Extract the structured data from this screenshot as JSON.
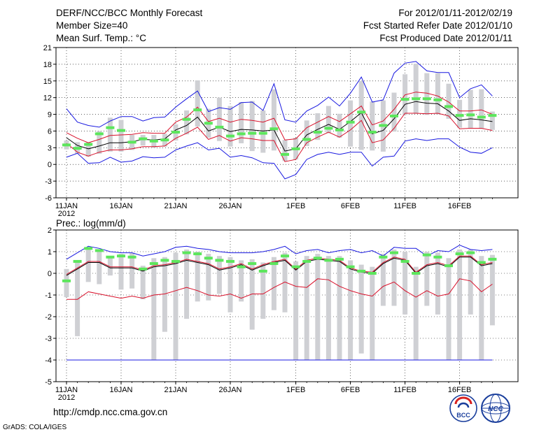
{
  "header": {
    "title": "DERF/NCC/BCC Monthly Forecast",
    "members": "Member Size=40",
    "variable1": "Mean Surf. Temp.: °C",
    "period": "For 2012/01/11-2012/02/19",
    "started": "Fcst Started Refer Date 2012/01/10",
    "produced": "Fcst Produced Date 2012/01/11"
  },
  "footer": {
    "url": "http://cmdp.ncc.cma.gov.cn",
    "credit": "GrADS: COLA/IGES",
    "logo_bcc": "BCC",
    "logo_ncc": "NCC"
  },
  "x_ticks": [
    {
      "day": 0,
      "label": "11JAN",
      "sub": "2012"
    },
    {
      "day": 5,
      "label": "16JAN"
    },
    {
      "day": 10,
      "label": "21JAN"
    },
    {
      "day": 15,
      "label": "26JAN"
    },
    {
      "day": 21,
      "label": "1FEB"
    },
    {
      "day": 26,
      "label": "6FEB"
    },
    {
      "day": 31,
      "label": "11FEB"
    },
    {
      "day": 36,
      "label": "16FEB"
    }
  ],
  "colors": {
    "box": "#cfd0d4",
    "median": "#5ce65c",
    "mean": "#000000",
    "std": "#d8102a",
    "range": "#1818e0"
  },
  "chart_data": [
    {
      "type": "box-ensemble",
      "ylabel": "Mean Surf. Temp.: °C",
      "ylim": [
        -6,
        21
      ],
      "yticks": [
        -6,
        -3,
        0,
        3,
        6,
        9,
        12,
        15,
        18,
        21
      ],
      "days": 40,
      "series": {
        "max": [
          10,
          7.6,
          7,
          6.7,
          7.8,
          8.6,
          8.6,
          7.8,
          8.4,
          8.5,
          10.3,
          11.8,
          13.2,
          9.5,
          10.2,
          9.9,
          11.1,
          11.2,
          9.7,
          14.5,
          8,
          7.6,
          9.6,
          10.6,
          12.1,
          10.5,
          12.8,
          15.7,
          11.2,
          11.6,
          16.4,
          18.2,
          18.5,
          16.8,
          16.5,
          16.5,
          12,
          13.6,
          14.3,
          12.3
        ],
        "mean_plus_std": [
          5.7,
          4.7,
          3.9,
          4.5,
          5.2,
          5.3,
          5.4,
          5.7,
          5.6,
          5.6,
          7.6,
          8.5,
          10.3,
          7.7,
          8.3,
          7.6,
          8.1,
          7.9,
          7.6,
          8.3,
          4.4,
          4.6,
          6.6,
          7.6,
          8.6,
          7.7,
          9.1,
          10.5,
          7.1,
          7.8,
          9.9,
          12.5,
          13,
          12.8,
          12.3,
          11.2,
          9.6,
          9.6,
          9.8,
          9
        ],
        "mean": [
          4.8,
          3.4,
          2.8,
          3.3,
          3.9,
          3.9,
          4.1,
          4.5,
          4.4,
          4.6,
          6.2,
          7,
          8.5,
          6,
          6.7,
          5.9,
          6.3,
          6.2,
          6,
          6.2,
          2.4,
          2.8,
          5.3,
          6.3,
          7.2,
          6.3,
          7.7,
          9.3,
          5.5,
          6.1,
          8.2,
          10.8,
          11.3,
          11,
          10.9,
          9.6,
          7.9,
          8.2,
          8,
          7.7
        ],
        "mean_minus_std": [
          3.8,
          2.2,
          1.5,
          2.2,
          2.6,
          2.6,
          2.8,
          3.2,
          3.2,
          3.3,
          4.7,
          5.6,
          6.7,
          4.5,
          5.2,
          4.2,
          4.8,
          4.6,
          4.3,
          4.3,
          0.5,
          0.9,
          3.9,
          4.9,
          5.8,
          4.9,
          6.2,
          7.9,
          3.9,
          4.4,
          6.5,
          9.2,
          9.2,
          9.1,
          9.2,
          8.7,
          6.4,
          6.5,
          6.5,
          6.1
        ],
        "min": [
          1.3,
          2,
          0.2,
          0.3,
          1.3,
          0.4,
          0.6,
          1.4,
          1.2,
          1.3,
          2.6,
          3.3,
          3.9,
          2.6,
          2.9,
          1.3,
          1.6,
          1.2,
          0.3,
          0.2,
          -2.6,
          -1.8,
          0.9,
          1.8,
          2.2,
          1.8,
          2.2,
          2.2,
          -0.3,
          1.3,
          1.5,
          4.2,
          4.6,
          4.3,
          4.6,
          4.6,
          3.1,
          2.2,
          2,
          3
        ],
        "median": [
          3.5,
          2.9,
          3.6,
          5.5,
          6.6,
          6.1,
          4,
          4.6,
          4.2,
          4.4,
          5.8,
          8.1,
          9.8,
          7.4,
          6.7,
          5.1,
          5.5,
          5.6,
          5.6,
          6.4,
          1.8,
          2.8,
          4.5,
          5.8,
          6.5,
          6.2,
          7.6,
          9.4,
          5.8,
          7,
          8.7,
          11.7,
          11.8,
          11.8,
          11.6,
          10.4,
          8.8,
          8.9,
          8.5,
          8.8
        ],
        "box_top": [
          4.3,
          4,
          4,
          6,
          8.4,
          8,
          5.3,
          5.3,
          5.3,
          5.5,
          7.2,
          9.7,
          15.1,
          10,
          12,
          10.5,
          11.2,
          11.4,
          9.7,
          13.5,
          4.4,
          4.8,
          7.9,
          9.2,
          10.5,
          9.1,
          11.5,
          15,
          11.3,
          11.5,
          12.9,
          16.2,
          18.1,
          16.4,
          16.4,
          14.5,
          11.6,
          13.4,
          13.5,
          9.5
        ],
        "box_bottom": [
          2.7,
          1.9,
          1.4,
          1.9,
          2.3,
          2.3,
          2.6,
          3.4,
          3,
          3.2,
          4.3,
          5.4,
          6.8,
          4.8,
          4.2,
          3.2,
          3.8,
          2.4,
          2.1,
          2.5,
          0.6,
          0.9,
          3.3,
          4.4,
          5.6,
          4.8,
          3.2,
          2.6,
          2.5,
          2.3,
          5.9,
          8.9,
          9.1,
          8.9,
          9,
          8.2,
          6.6,
          6.5,
          6.4,
          6.2
        ]
      }
    },
    {
      "type": "box-ensemble",
      "ylabel": "Prec.: log(mm/d)",
      "ylim": [
        -5,
        2
      ],
      "yticks": [
        -5,
        -4,
        -3,
        -2,
        -1,
        0,
        1,
        2
      ],
      "days": 40,
      "series": {
        "max": [
          0.65,
          0.95,
          1.25,
          1.15,
          1,
          0.95,
          0.95,
          0.8,
          0.9,
          1,
          1.2,
          1.25,
          1.15,
          1.1,
          1,
          0.95,
          0.95,
          0.95,
          1,
          1.1,
          1.25,
          0.9,
          1.05,
          1.1,
          0.95,
          1.05,
          1.1,
          0.95,
          1.05,
          0.8,
          1.2,
          1.15,
          1.15,
          0.8,
          1.05,
          1,
          1.3,
          1.1,
          1.05,
          1.1
        ],
        "mean_plus_std": [
          -0.05,
          0.25,
          0.55,
          0.55,
          0.3,
          0.3,
          0.3,
          0.15,
          0.35,
          0.4,
          0.5,
          0.65,
          0.55,
          0.45,
          0.2,
          0.3,
          0.45,
          0.2,
          0.4,
          0.55,
          0.65,
          0.2,
          0.6,
          0.7,
          0.65,
          0.6,
          0.25,
          0.1,
          0.05,
          0.5,
          0.75,
          0.65,
          0.05,
          0.4,
          0.5,
          0.35,
          0.8,
          0.8,
          0.4,
          0.5
        ],
        "mean": [
          -0.1,
          0.2,
          0.5,
          0.5,
          0.25,
          0.25,
          0.25,
          0.1,
          0.3,
          0.35,
          0.45,
          0.6,
          0.5,
          0.4,
          0.15,
          0.25,
          0.4,
          0.15,
          0.35,
          0.5,
          0.6,
          0.15,
          0.55,
          0.65,
          0.6,
          0.55,
          0.2,
          0.05,
          0,
          0.45,
          0.7,
          0.6,
          0,
          0.35,
          0.45,
          0.3,
          0.75,
          0.75,
          0.35,
          0.45
        ],
        "mean_minus_std": [
          -1.2,
          -1.2,
          -0.85,
          -0.95,
          -1.05,
          -1.15,
          -1.05,
          -1.15,
          -1,
          -0.95,
          -0.8,
          -0.65,
          -0.8,
          -1,
          -1.05,
          -0.95,
          -1.15,
          -0.95,
          -0.95,
          -0.65,
          -0.4,
          -0.6,
          -0.65,
          -0.25,
          -0.3,
          -0.6,
          -0.8,
          -0.95,
          -1.05,
          -0.6,
          -0.4,
          -0.8,
          -1.1,
          -0.8,
          -1.05,
          -0.95,
          -0.25,
          -0.35,
          -0.85,
          -0.5
        ],
        "min": [
          -4,
          -4,
          -4,
          -4,
          -4,
          -4,
          -4,
          -4,
          -4,
          -4,
          -4,
          -4,
          -4,
          -4,
          -4,
          -4,
          -4,
          -4,
          -4,
          -4,
          -4,
          -4,
          -4,
          -4,
          -4,
          -4,
          -4,
          -4,
          -4,
          -4,
          -4,
          -4,
          -4,
          -4,
          -4,
          -4,
          -4,
          -4,
          -4,
          -4
        ],
        "median": [
          -0.35,
          0.55,
          1.15,
          1.05,
          0.75,
          0.8,
          0.75,
          0.2,
          0.45,
          0.6,
          0.55,
          0.95,
          0.9,
          0.7,
          0.6,
          0.55,
          0.3,
          0.45,
          0.1,
          0.45,
          0.8,
          0.3,
          0.55,
          0.7,
          0.6,
          0.65,
          0.3,
          0.1,
          0,
          0.75,
          0.95,
          0.55,
          0,
          0.85,
          0.75,
          0.35,
          0.9,
          0.95,
          0.5,
          0.65
        ],
        "box_top": [
          0.2,
          0.6,
          1.2,
          1.1,
          0.8,
          0.9,
          0.95,
          0.35,
          0.7,
          0.75,
          0.95,
          1.1,
          1,
          0.9,
          0.8,
          0.75,
          0.6,
          0.65,
          0.5,
          0.75,
          0.95,
          0.55,
          0.8,
          0.9,
          0.8,
          0.8,
          0.6,
          0.4,
          0.3,
          0.9,
          1.1,
          1,
          0.3,
          1,
          0.95,
          0.7,
          1.1,
          1.1,
          0.8,
          0.85
        ],
        "box_bottom": [
          -1.1,
          -2.9,
          -0.4,
          -0.5,
          -0.1,
          -0.75,
          -0.7,
          -1.2,
          -4,
          -2.7,
          -4,
          -2.1,
          -1.3,
          -1.25,
          -0.95,
          -1.8,
          -1.3,
          -2.6,
          -2.1,
          -1.7,
          -1.8,
          -4,
          -4,
          -4,
          -4,
          -4,
          -4,
          -3.7,
          -4,
          -1.5,
          -1.5,
          -1.9,
          -4,
          -1.5,
          -1.9,
          -4,
          -4,
          -1.9,
          -4,
          -2.4
        ]
      }
    }
  ]
}
